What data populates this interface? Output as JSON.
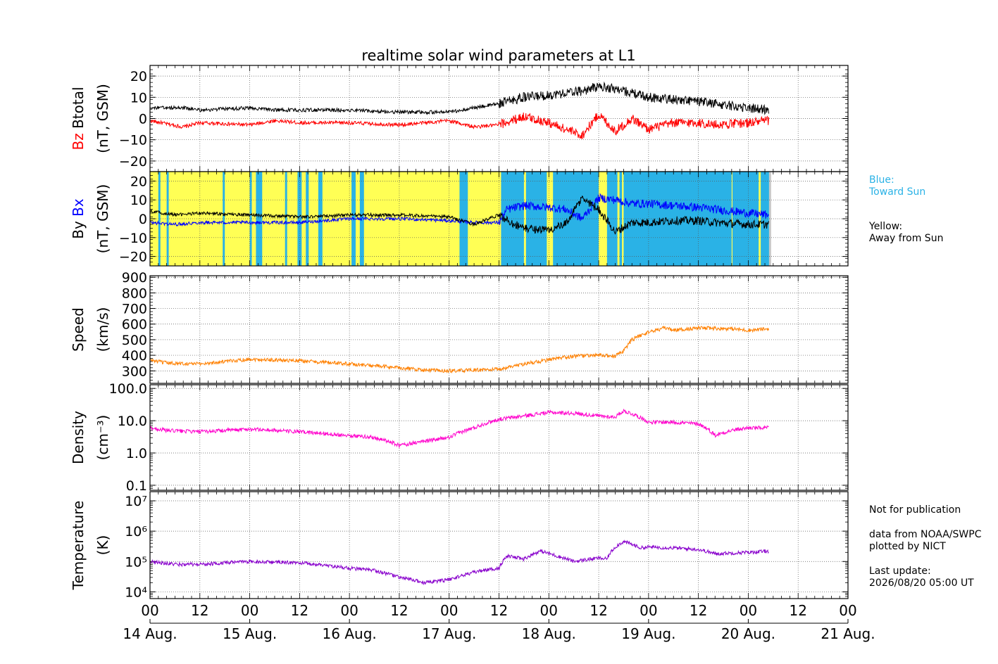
{
  "title": "realtime solar wind parameters at L1",
  "colors": {
    "bz": "#ff0000",
    "btotal": "#000000",
    "bx": "#0000ff",
    "by": "#000000",
    "speed": "#ff8000",
    "density": "#ff00cc",
    "temperature": "#8800cc",
    "toward": "#2ab2e6",
    "away": "#ffff55"
  },
  "notes": {
    "blue_1": "Blue:",
    "blue_2": "Toward Sun",
    "yellow_1": "Yellow:",
    "yellow_2": "Away from Sun",
    "not_pub": "Not for publication",
    "source_1": "data from NOAA/SWPC",
    "source_2": "plotted by NICT",
    "update_1": "Last update:",
    "update_2": "2026/08/20 05:00 UT"
  },
  "chart_data": {
    "type": "line",
    "x_axis": {
      "range_hours": [
        0,
        168
      ],
      "data_end_hour": 149,
      "hour_tick_labels": [
        "00",
        "12",
        "00",
        "12",
        "00",
        "12",
        "00",
        "12",
        "00",
        "12",
        "00",
        "12",
        "00",
        "12",
        "00"
      ],
      "date_labels": [
        "14 Aug.",
        "15 Aug.",
        "16 Aug.",
        "17 Aug.",
        "18 Aug.",
        "19 Aug.",
        "20 Aug.",
        "21 Aug."
      ],
      "grid": true
    },
    "panels": [
      {
        "id": "bfield",
        "ylabel_parts": [
          "Bz",
          "Btotal"
        ],
        "ylabel_unit": "(nT, GSM)",
        "ylim": [
          -25,
          25
        ],
        "yticks": [
          -20,
          -10,
          0,
          10,
          20
        ],
        "ytick_labels": [
          "−20",
          "−10",
          "0",
          "10",
          "20"
        ],
        "series": [
          {
            "name": "Bz",
            "x": [
              0,
              8,
              12,
              24,
              30,
              36,
              48,
              60,
              72,
              78,
              84,
              90,
              96,
              100,
              104,
              108,
              112,
              116,
              120,
              126,
              132,
              136,
              144,
              149
            ],
            "y": [
              -1,
              -4,
              -2,
              -3,
              -1,
              -2,
              -2,
              -3,
              -1,
              -4,
              -3,
              1,
              -2,
              -5,
              -8,
              2,
              -6,
              0,
              -5,
              -2,
              -2,
              -3,
              -2,
              -1
            ]
          },
          {
            "name": "Btotal",
            "x": [
              0,
              8,
              12,
              24,
              30,
              36,
              48,
              60,
              72,
              78,
              84,
              90,
              96,
              100,
              104,
              108,
              112,
              116,
              120,
              126,
              132,
              136,
              144,
              149
            ],
            "y": [
              5,
              5,
              4,
              5,
              4,
              4,
              4,
              3,
              3,
              5,
              7,
              10,
              11,
              12,
              13,
              15,
              14,
              12,
              10,
              9,
              8,
              7,
              5,
              4
            ]
          }
        ]
      },
      {
        "id": "bxby",
        "ylabel_parts": [
          "By",
          "Bx"
        ],
        "ylabel_unit": "(nT, GSM)",
        "ylim": [
          -25,
          25
        ],
        "yticks": [
          -20,
          -10,
          0,
          10,
          20
        ],
        "ytick_labels": [
          "−20",
          "−10",
          "0",
          "10",
          "20"
        ],
        "background": {
          "toward_sun_hour_spans": [
            [
              2,
              2.5
            ],
            [
              4,
              4.5
            ],
            [
              17.5,
              18
            ],
            [
              24,
              24.5
            ],
            [
              25.5,
              27
            ],
            [
              32.5,
              33
            ],
            [
              35.5,
              36.5
            ],
            [
              37.5,
              38.2
            ],
            [
              40.5,
              41.5
            ],
            [
              48.5,
              49.5
            ],
            [
              50.5,
              51.5
            ],
            [
              74.5,
              76.5
            ],
            [
              84.5,
              90
            ],
            [
              90.5,
              95.5
            ],
            [
              97,
              108
            ],
            [
              110,
              112.5
            ],
            [
              113,
              113.6
            ],
            [
              114,
              140
            ],
            [
              140.2,
              146.5
            ],
            [
              147,
              149
            ]
          ],
          "no_data_hour_spans": [
            [
              149,
              149.5
            ]
          ]
        },
        "series": [
          {
            "name": "Bx",
            "x": [
              0,
              6,
              12,
              24,
              36,
              48,
              60,
              72,
              78,
              84,
              86,
              90,
              96,
              100,
              104,
              108,
              112,
              116,
              120,
              126,
              132,
              136,
              144,
              149
            ],
            "y": [
              -2,
              -3,
              -2,
              -2,
              -2,
              0,
              0,
              -1,
              -2,
              -2,
              5,
              7,
              6,
              5,
              0,
              11,
              10,
              8,
              8,
              7,
              6,
              5,
              3,
              2
            ]
          },
          {
            "name": "By",
            "x": [
              0,
              6,
              12,
              24,
              36,
              48,
              60,
              72,
              78,
              84,
              86,
              90,
              96,
              100,
              104,
              108,
              112,
              116,
              120,
              126,
              132,
              136,
              144,
              149
            ],
            "y": [
              4,
              2,
              3,
              2,
              1,
              2,
              2,
              1,
              -3,
              2,
              -1,
              -5,
              -6,
              -3,
              11,
              5,
              -7,
              -2,
              -2,
              -1,
              -1,
              -2,
              -3,
              -3
            ]
          }
        ]
      },
      {
        "id": "speed",
        "ylabel_parts": [
          "Speed"
        ],
        "ylabel_unit": "(km/s)",
        "ylim": [
          220,
          910
        ],
        "yticks": [
          300,
          400,
          500,
          600,
          700,
          800,
          900
        ],
        "ytick_labels": [
          "300",
          "400",
          "500",
          "600",
          "700",
          "800",
          "900"
        ],
        "series": [
          {
            "name": "Speed",
            "x": [
              0,
              4,
              12,
              18,
              24,
              36,
              48,
              60,
              66,
              72,
              84,
              90,
              96,
              102,
              108,
              112,
              114,
              116,
              120,
              124,
              126,
              132,
              140,
              144,
              149
            ],
            "y": [
              370,
              350,
              345,
              360,
              375,
              365,
              345,
              320,
              305,
              300,
              310,
              345,
              370,
              395,
              400,
              395,
              430,
              500,
              550,
              575,
              560,
              575,
              570,
              560,
              570
            ]
          }
        ]
      },
      {
        "id": "density",
        "ylabel_parts": [
          "Density"
        ],
        "ylabel_unit": "(cm⁻³)",
        "log": true,
        "ylim": [
          0.07,
          130
        ],
        "yticks": [
          0.1,
          1.0,
          10.0,
          100.0
        ],
        "ytick_labels": [
          "0.1",
          "1.0",
          "10.0",
          "100.0"
        ],
        "series": [
          {
            "name": "Density",
            "x": [
              0,
              4,
              12,
              24,
              36,
              48,
              54,
              60,
              66,
              72,
              78,
              84,
              90,
              96,
              102,
              108,
              112,
              114,
              120,
              126,
              132,
              136,
              140,
              144,
              149
            ],
            "y": [
              6,
              5,
              4.5,
              5.5,
              4.5,
              3.5,
              3,
              1.7,
              2.3,
              3,
              6,
              11,
              14,
              18,
              17,
              14,
              13,
              20,
              9,
              9,
              8,
              3.5,
              5,
              6,
              6
            ]
          }
        ]
      },
      {
        "id": "temperature",
        "ylabel_parts": [
          "Temperature"
        ],
        "ylabel_unit": "(K)",
        "log": true,
        "ylim": [
          6000,
          20000000
        ],
        "yticks": [
          10000,
          100000,
          1000000,
          10000000
        ],
        "ytick_labels": [
          "10⁴",
          "10⁵",
          "10⁶",
          "10⁷"
        ],
        "series": [
          {
            "name": "Temperature",
            "x": [
              0,
              6,
              12,
              24,
              36,
              48,
              54,
              60,
              66,
              72,
              80,
              84,
              86,
              90,
              94,
              98,
              102,
              108,
              110,
              112,
              114,
              118,
              120,
              126,
              132,
              136,
              144,
              149
            ],
            "y": [
              100000,
              80000,
              80000,
              100000,
              90000,
              60000,
              50000,
              30000,
              20000,
              25000,
              50000,
              60000,
              150000,
              120000,
              220000,
              150000,
              100000,
              130000,
              120000,
              300000,
              450000,
              280000,
              300000,
              280000,
              250000,
              180000,
              200000,
              220000
            ]
          }
        ]
      }
    ]
  }
}
